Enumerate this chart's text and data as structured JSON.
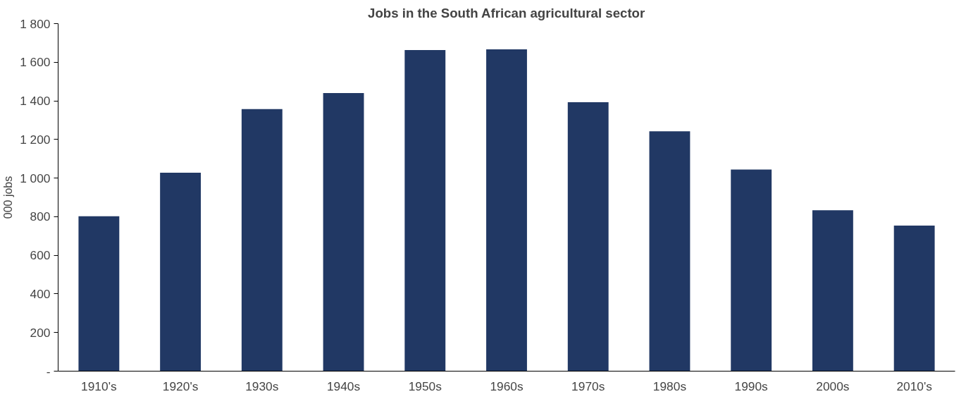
{
  "chart_data": {
    "type": "bar",
    "title": "Jobs in the South African agricultural sector",
    "ylabel": "000 jobs",
    "categories": [
      "1910's",
      "1920's",
      "1930s",
      "1940s",
      "1950s",
      "1960s",
      "1970s",
      "1980s",
      "1990s",
      "2000s",
      "2010's"
    ],
    "values": [
      802,
      1028,
      1357,
      1440,
      1663,
      1667,
      1393,
      1242,
      1044,
      833,
      754
    ],
    "color": "#213864",
    "ylim": [
      0,
      1800
    ],
    "yticks": [
      {
        "value": 0,
        "label": "-"
      },
      {
        "value": 200,
        "label": "200"
      },
      {
        "value": 400,
        "label": "400"
      },
      {
        "value": 600,
        "label": "600"
      },
      {
        "value": 800,
        "label": "800"
      },
      {
        "value": 1000,
        "label": "1 000"
      },
      {
        "value": 1200,
        "label": "1 200"
      },
      {
        "value": 1400,
        "label": "1 400"
      },
      {
        "value": 1600,
        "label": "1 600"
      },
      {
        "value": 1800,
        "label": "1 800"
      }
    ],
    "grid": false
  }
}
